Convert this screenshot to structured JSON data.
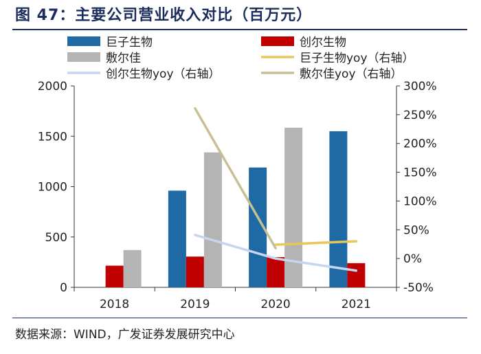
{
  "figure_title": "图 47：主要公司营业收入对比（百万元）",
  "source": "数据来源：WIND，广发证券发展研究中心",
  "chart_data": {
    "type": "bar",
    "categories": [
      "2018",
      "2019",
      "2020",
      "2021"
    ],
    "ylim": [
      0,
      2000
    ],
    "yticks": [
      "0",
      "500",
      "1000",
      "1500",
      "2000"
    ],
    "y2lim": [
      -50,
      300
    ],
    "y2ticks": [
      "-50%",
      "0%",
      "50%",
      "100%",
      "150%",
      "200%",
      "250%",
      "300%"
    ],
    "legend_position": "top",
    "bar_series": [
      {
        "name": "巨子生物",
        "color": "#1f6aa5",
        "values": [
          null,
          960,
          1190,
          1550
        ]
      },
      {
        "name": "创尔生物",
        "color": "#c00000",
        "values": [
          215,
          305,
          300,
          240
        ]
      },
      {
        "name": "敷尔佳",
        "color": "#b4b4b4",
        "values": [
          370,
          1340,
          1585,
          null
        ]
      }
    ],
    "line_series": [
      {
        "name": "巨子生物yoy（右轴）",
        "color": "#e6c85a",
        "values": [
          null,
          null,
          24,
          30
        ]
      },
      {
        "name": "创尔生物yoy（右轴）",
        "color": "#c6d6ee",
        "values": [
          null,
          41,
          0,
          -21
        ]
      },
      {
        "name": "敷尔佳yoy（右轴）",
        "color": "#c8bf96",
        "values": [
          null,
          261,
          18,
          null
        ]
      }
    ]
  }
}
